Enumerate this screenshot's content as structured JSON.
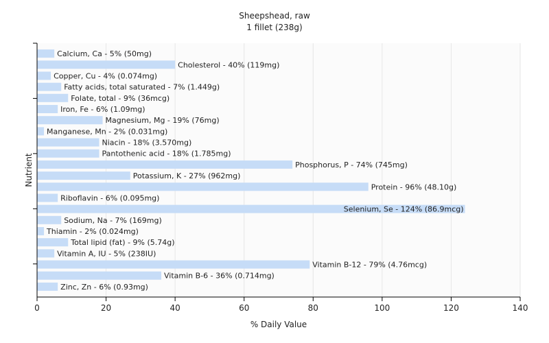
{
  "chart_data": {
    "type": "bar",
    "orientation": "horizontal",
    "title": "Sheepshead, raw",
    "subtitle": "1 fillet (238g)",
    "xlabel": "% Daily Value",
    "ylabel": "Nutrient",
    "xlim": [
      0,
      140
    ],
    "xticks": [
      0,
      20,
      40,
      60,
      80,
      100,
      120,
      140
    ],
    "grid": true,
    "bar_color": "#c6dcf7",
    "categories": [
      "Calcium, Ca",
      "Cholesterol",
      "Copper, Cu",
      "Fatty acids, total saturated",
      "Folate, total",
      "Iron, Fe",
      "Magnesium, Mg",
      "Manganese, Mn",
      "Niacin",
      "Pantothenic acid",
      "Phosphorus, P",
      "Potassium, K",
      "Protein",
      "Riboflavin",
      "Selenium, Se",
      "Sodium, Na",
      "Thiamin",
      "Total lipid (fat)",
      "Vitamin A, IU",
      "Vitamin B-12",
      "Vitamin B-6",
      "Zinc, Zn"
    ],
    "values": [
      5,
      40,
      4,
      7,
      9,
      6,
      19,
      2,
      18,
      18,
      74,
      27,
      96,
      6,
      124,
      7,
      2,
      9,
      5,
      79,
      36,
      6
    ],
    "labels": [
      "Calcium, Ca - 5% (50mg)",
      "Cholesterol - 40% (119mg)",
      "Copper, Cu - 4% (0.074mg)",
      "Fatty acids, total saturated - 7% (1.449g)",
      "Folate, total - 9% (36mcg)",
      "Iron, Fe - 6% (1.09mg)",
      "Magnesium, Mg - 19% (76mg)",
      "Manganese, Mn - 2% (0.031mg)",
      "Niacin - 18% (3.570mg)",
      "Pantothenic acid - 18% (1.785mg)",
      "Phosphorus, P - 74% (745mg)",
      "Potassium, K - 27% (962mg)",
      "Protein - 96% (48.10g)",
      "Riboflavin - 6% (0.095mg)",
      "Selenium, Se - 124% (86.9mcg)",
      "Sodium, Na - 7% (169mg)",
      "Thiamin - 2% (0.024mg)",
      "Total lipid (fat) - 9% (5.74g)",
      "Vitamin A, IU - 5% (238IU)",
      "Vitamin B-12 - 79% (4.76mcg)",
      "Vitamin B-6 - 36% (0.714mg)",
      "Zinc, Zn - 6% (0.93mg)"
    ]
  }
}
